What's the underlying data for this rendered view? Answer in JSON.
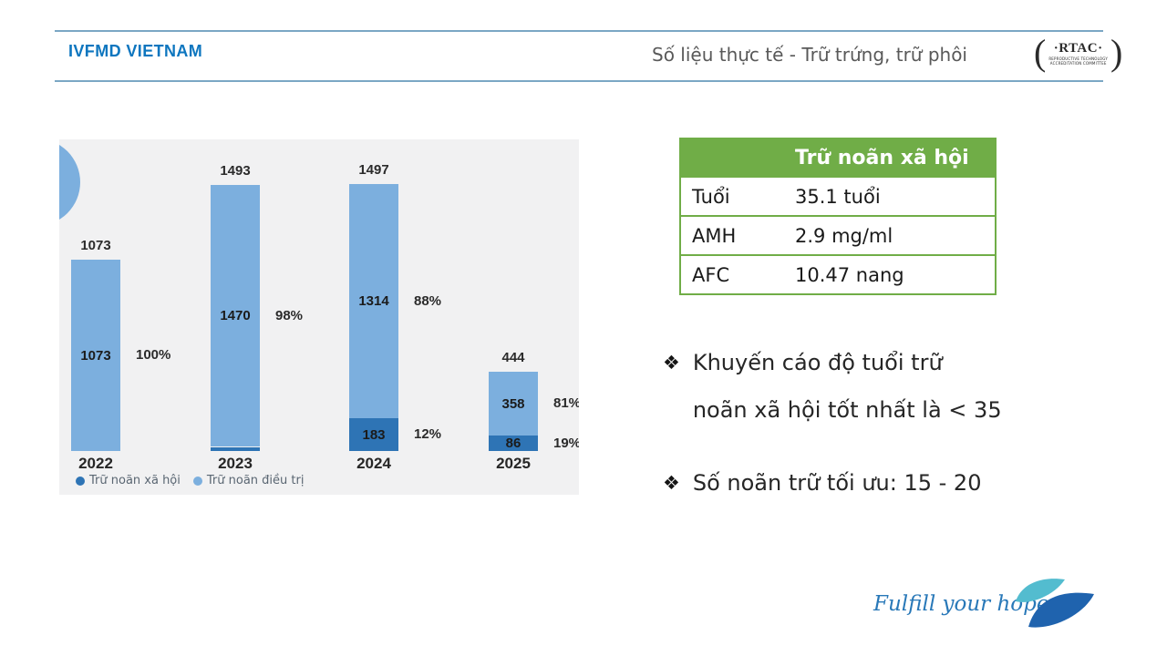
{
  "header": {
    "brand": "IVFMD VIETNAM",
    "title": "Số liệu thực tế - Trữ trứng, trữ phôi",
    "rtac": {
      "acronym": "·RTAC·",
      "line1": "REPRODUCTIVE TECHNOLOGY",
      "line2": "ACCREDITATION COMMITTEE"
    }
  },
  "chart_data": {
    "type": "bar",
    "stacked": true,
    "categories": [
      "2022",
      "2023",
      "2024",
      "2025"
    ],
    "series": [
      {
        "name": "Trữ noãn xã hội",
        "color": "#2E74B5",
        "values": [
          0,
          23,
          183,
          86
        ],
        "labels": [
          "",
          "",
          "183",
          "86"
        ],
        "pct": [
          "",
          "",
          "12%",
          "19%"
        ]
      },
      {
        "name": "Trữ noãn điều trị",
        "color": "#7CAFDE",
        "values": [
          1073,
          1470,
          1314,
          358
        ],
        "labels": [
          "1073",
          "1470",
          "1314",
          "358"
        ],
        "pct": [
          "100%",
          "98%",
          "88%",
          "81%"
        ]
      }
    ],
    "totals": [
      "1073",
      "1493",
      "1497",
      "444"
    ],
    "title": "",
    "xlabel": "",
    "ylabel": "",
    "ylim": [
      0,
      1750
    ],
    "grid": false,
    "legend_position": "bottom-left",
    "background": "#F1F1F2"
  },
  "table": {
    "header": "Trữ noãn xã hội",
    "header_bg": "#70AD47",
    "rows": [
      {
        "label": "Tuổi",
        "value": "35.1 tuổi"
      },
      {
        "label": "AMH",
        "value": "2.9 mg/ml"
      },
      {
        "label": "AFC",
        "value": "10.47 nang"
      }
    ]
  },
  "notes": {
    "bullet_marker": "❖",
    "items": [
      {
        "lines": [
          "Khuyến cáo độ tuổi trữ",
          "noãn xã hội tốt nhất là < 35"
        ]
      },
      {
        "lines": [
          "Số noãn trữ tối ưu: 15 - 20"
        ]
      }
    ]
  },
  "footer": {
    "tagline": "Fulfill your hope"
  },
  "colors": {
    "brand_blue": "#0D76BF",
    "title_gray": "#595959",
    "rule_blue": "#7BA7C4",
    "bar_light": "#7CAFDE",
    "bar_dark": "#2E74B5",
    "table_green": "#70AD47",
    "chart_bg": "#F1F1F2",
    "leaf_teal": "#53BCCF",
    "leaf_blue": "#1F63AE",
    "tagline_blue": "#2878B8"
  }
}
